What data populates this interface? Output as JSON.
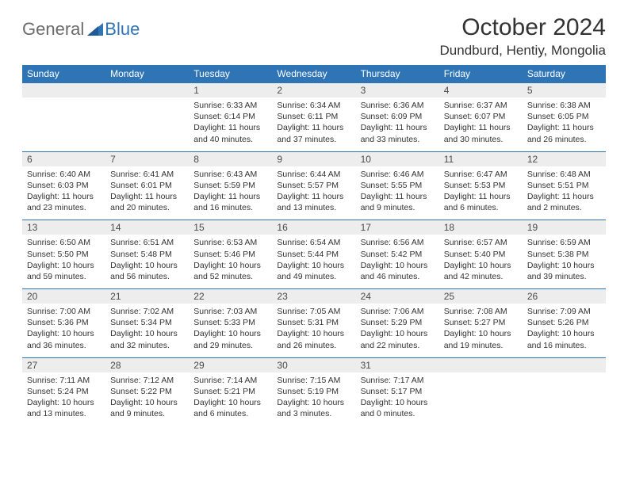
{
  "logo": {
    "word1": "General",
    "word2": "Blue"
  },
  "title": "October 2024",
  "location": "Dundburd, Hentiy, Mongolia",
  "colors": {
    "header_bg": "#2f74b5",
    "header_text": "#ffffff",
    "daynum_bg": "#ededed",
    "row_divider": "#2f74b5",
    "logo_gray": "#6b6b6b",
    "logo_blue": "#2f74b5",
    "body_text": "#333333",
    "page_bg": "#ffffff"
  },
  "typography": {
    "title_fontsize": 30,
    "location_fontsize": 17,
    "dayhead_fontsize": 12,
    "daynum_fontsize": 12,
    "cell_fontsize": 10.5
  },
  "calendar": {
    "type": "table",
    "day_labels": [
      "Sunday",
      "Monday",
      "Tuesday",
      "Wednesday",
      "Thursday",
      "Friday",
      "Saturday"
    ],
    "weeks": [
      [
        null,
        null,
        {
          "n": "1",
          "sr": "Sunrise: 6:33 AM",
          "ss": "Sunset: 6:14 PM",
          "d1": "Daylight: 11 hours",
          "d2": "and 40 minutes."
        },
        {
          "n": "2",
          "sr": "Sunrise: 6:34 AM",
          "ss": "Sunset: 6:11 PM",
          "d1": "Daylight: 11 hours",
          "d2": "and 37 minutes."
        },
        {
          "n": "3",
          "sr": "Sunrise: 6:36 AM",
          "ss": "Sunset: 6:09 PM",
          "d1": "Daylight: 11 hours",
          "d2": "and 33 minutes."
        },
        {
          "n": "4",
          "sr": "Sunrise: 6:37 AM",
          "ss": "Sunset: 6:07 PM",
          "d1": "Daylight: 11 hours",
          "d2": "and 30 minutes."
        },
        {
          "n": "5",
          "sr": "Sunrise: 6:38 AM",
          "ss": "Sunset: 6:05 PM",
          "d1": "Daylight: 11 hours",
          "d2": "and 26 minutes."
        }
      ],
      [
        {
          "n": "6",
          "sr": "Sunrise: 6:40 AM",
          "ss": "Sunset: 6:03 PM",
          "d1": "Daylight: 11 hours",
          "d2": "and 23 minutes."
        },
        {
          "n": "7",
          "sr": "Sunrise: 6:41 AM",
          "ss": "Sunset: 6:01 PM",
          "d1": "Daylight: 11 hours",
          "d2": "and 20 minutes."
        },
        {
          "n": "8",
          "sr": "Sunrise: 6:43 AM",
          "ss": "Sunset: 5:59 PM",
          "d1": "Daylight: 11 hours",
          "d2": "and 16 minutes."
        },
        {
          "n": "9",
          "sr": "Sunrise: 6:44 AM",
          "ss": "Sunset: 5:57 PM",
          "d1": "Daylight: 11 hours",
          "d2": "and 13 minutes."
        },
        {
          "n": "10",
          "sr": "Sunrise: 6:46 AM",
          "ss": "Sunset: 5:55 PM",
          "d1": "Daylight: 11 hours",
          "d2": "and 9 minutes."
        },
        {
          "n": "11",
          "sr": "Sunrise: 6:47 AM",
          "ss": "Sunset: 5:53 PM",
          "d1": "Daylight: 11 hours",
          "d2": "and 6 minutes."
        },
        {
          "n": "12",
          "sr": "Sunrise: 6:48 AM",
          "ss": "Sunset: 5:51 PM",
          "d1": "Daylight: 11 hours",
          "d2": "and 2 minutes."
        }
      ],
      [
        {
          "n": "13",
          "sr": "Sunrise: 6:50 AM",
          "ss": "Sunset: 5:50 PM",
          "d1": "Daylight: 10 hours",
          "d2": "and 59 minutes."
        },
        {
          "n": "14",
          "sr": "Sunrise: 6:51 AM",
          "ss": "Sunset: 5:48 PM",
          "d1": "Daylight: 10 hours",
          "d2": "and 56 minutes."
        },
        {
          "n": "15",
          "sr": "Sunrise: 6:53 AM",
          "ss": "Sunset: 5:46 PM",
          "d1": "Daylight: 10 hours",
          "d2": "and 52 minutes."
        },
        {
          "n": "16",
          "sr": "Sunrise: 6:54 AM",
          "ss": "Sunset: 5:44 PM",
          "d1": "Daylight: 10 hours",
          "d2": "and 49 minutes."
        },
        {
          "n": "17",
          "sr": "Sunrise: 6:56 AM",
          "ss": "Sunset: 5:42 PM",
          "d1": "Daylight: 10 hours",
          "d2": "and 46 minutes."
        },
        {
          "n": "18",
          "sr": "Sunrise: 6:57 AM",
          "ss": "Sunset: 5:40 PM",
          "d1": "Daylight: 10 hours",
          "d2": "and 42 minutes."
        },
        {
          "n": "19",
          "sr": "Sunrise: 6:59 AM",
          "ss": "Sunset: 5:38 PM",
          "d1": "Daylight: 10 hours",
          "d2": "and 39 minutes."
        }
      ],
      [
        {
          "n": "20",
          "sr": "Sunrise: 7:00 AM",
          "ss": "Sunset: 5:36 PM",
          "d1": "Daylight: 10 hours",
          "d2": "and 36 minutes."
        },
        {
          "n": "21",
          "sr": "Sunrise: 7:02 AM",
          "ss": "Sunset: 5:34 PM",
          "d1": "Daylight: 10 hours",
          "d2": "and 32 minutes."
        },
        {
          "n": "22",
          "sr": "Sunrise: 7:03 AM",
          "ss": "Sunset: 5:33 PM",
          "d1": "Daylight: 10 hours",
          "d2": "and 29 minutes."
        },
        {
          "n": "23",
          "sr": "Sunrise: 7:05 AM",
          "ss": "Sunset: 5:31 PM",
          "d1": "Daylight: 10 hours",
          "d2": "and 26 minutes."
        },
        {
          "n": "24",
          "sr": "Sunrise: 7:06 AM",
          "ss": "Sunset: 5:29 PM",
          "d1": "Daylight: 10 hours",
          "d2": "and 22 minutes."
        },
        {
          "n": "25",
          "sr": "Sunrise: 7:08 AM",
          "ss": "Sunset: 5:27 PM",
          "d1": "Daylight: 10 hours",
          "d2": "and 19 minutes."
        },
        {
          "n": "26",
          "sr": "Sunrise: 7:09 AM",
          "ss": "Sunset: 5:26 PM",
          "d1": "Daylight: 10 hours",
          "d2": "and 16 minutes."
        }
      ],
      [
        {
          "n": "27",
          "sr": "Sunrise: 7:11 AM",
          "ss": "Sunset: 5:24 PM",
          "d1": "Daylight: 10 hours",
          "d2": "and 13 minutes."
        },
        {
          "n": "28",
          "sr": "Sunrise: 7:12 AM",
          "ss": "Sunset: 5:22 PM",
          "d1": "Daylight: 10 hours",
          "d2": "and 9 minutes."
        },
        {
          "n": "29",
          "sr": "Sunrise: 7:14 AM",
          "ss": "Sunset: 5:21 PM",
          "d1": "Daylight: 10 hours",
          "d2": "and 6 minutes."
        },
        {
          "n": "30",
          "sr": "Sunrise: 7:15 AM",
          "ss": "Sunset: 5:19 PM",
          "d1": "Daylight: 10 hours",
          "d2": "and 3 minutes."
        },
        {
          "n": "31",
          "sr": "Sunrise: 7:17 AM",
          "ss": "Sunset: 5:17 PM",
          "d1": "Daylight: 10 hours",
          "d2": "and 0 minutes."
        },
        null,
        null
      ]
    ]
  }
}
